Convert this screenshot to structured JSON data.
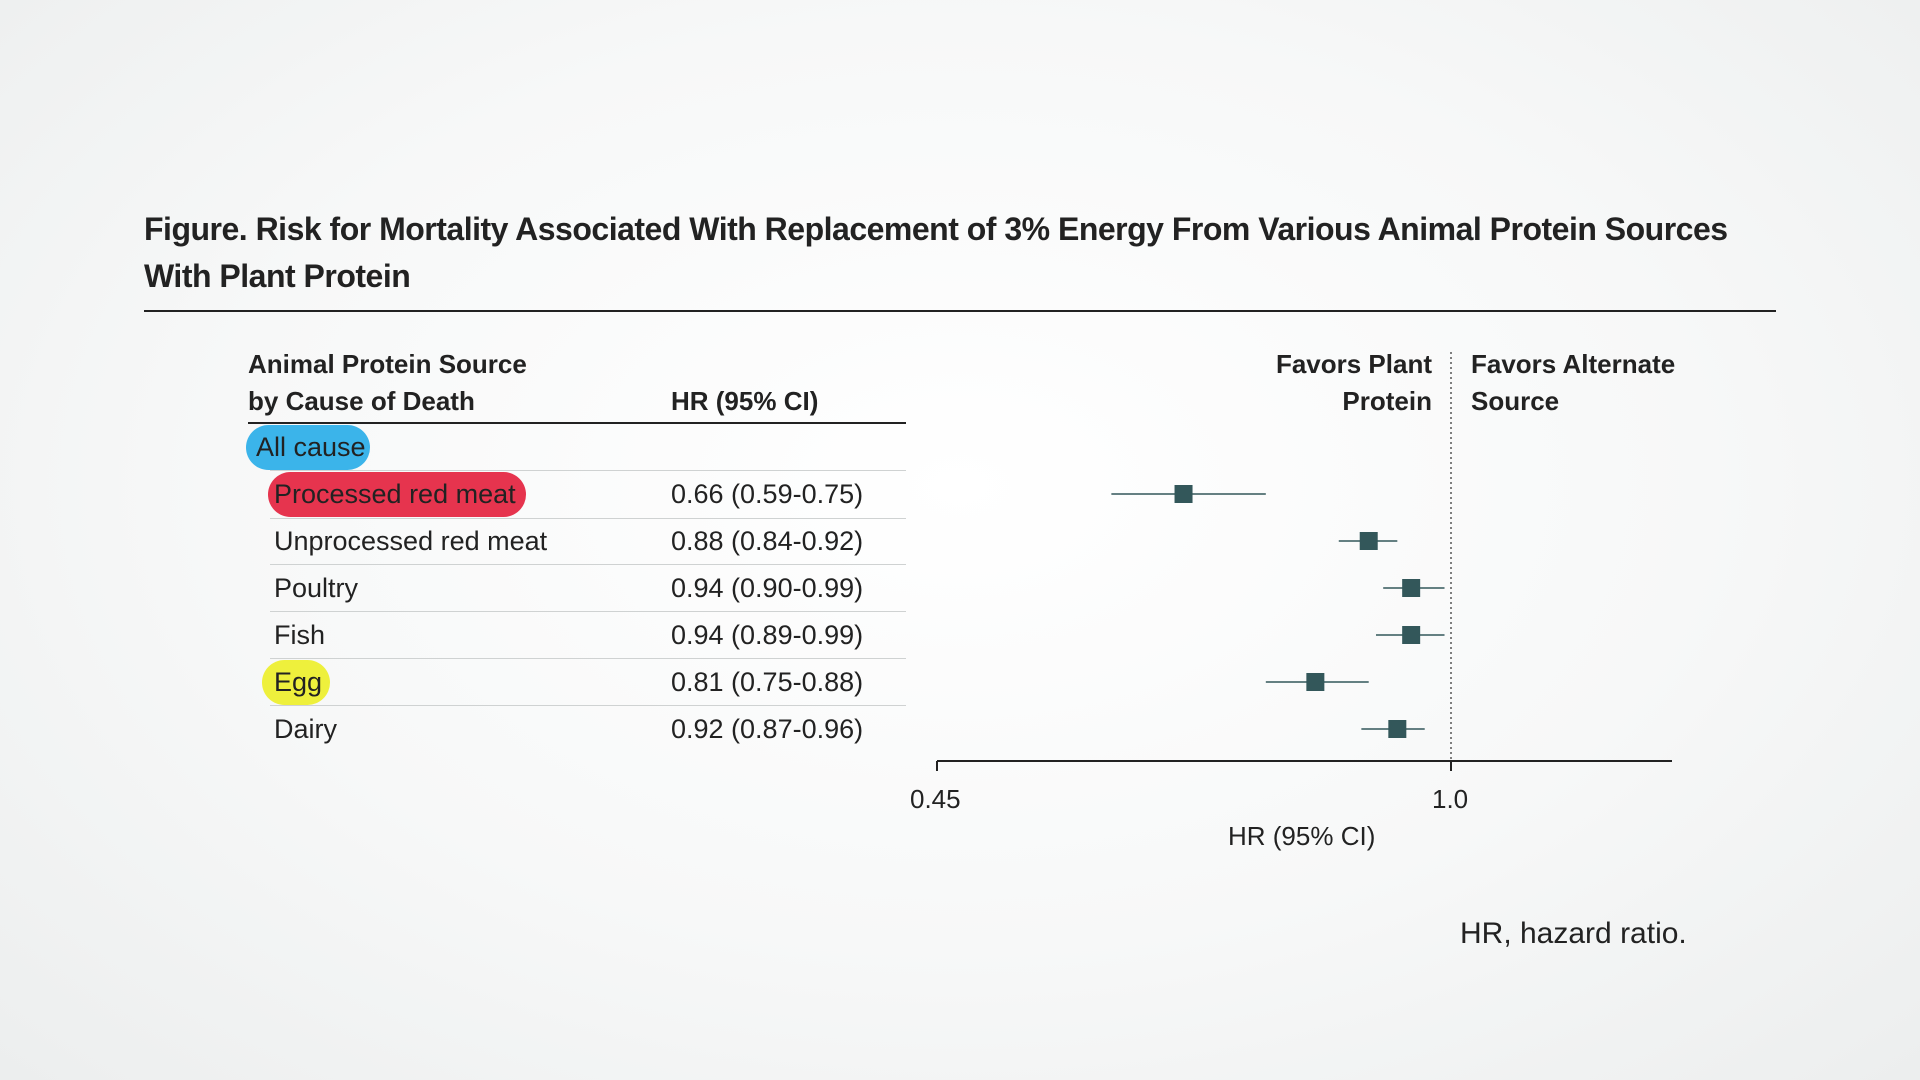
{
  "title": "Figure. Risk for Mortality Associated With Replacement of 3% Energy From Various Animal Protein Sources With Plant Protein",
  "table": {
    "col1_header_line1": "Animal Protein Source",
    "col1_header_line2": "by Cause of Death",
    "col2_header": "HR (95% CI)",
    "group": "All cause",
    "rows": [
      {
        "label": "Processed red meat",
        "hr_text": "0.66 (0.59-0.75)"
      },
      {
        "label": "Unprocessed red meat",
        "hr_text": "0.88 (0.84-0.92)"
      },
      {
        "label": "Poultry",
        "hr_text": "0.94 (0.90-0.99)"
      },
      {
        "label": "Fish",
        "hr_text": "0.94 (0.89-0.99)"
      },
      {
        "label": "Egg",
        "hr_text": "0.81 (0.75-0.88)"
      },
      {
        "label": "Dairy",
        "hr_text": "0.92 (0.87-0.96)"
      }
    ]
  },
  "favors": {
    "left_line1": "Favors Plant",
    "left_line2": "Protein",
    "right_line1": "Favors Alternate",
    "right_line2": "Source"
  },
  "chart_data": {
    "type": "scatter",
    "subtype": "forest-plot",
    "categories": [
      "Processed red meat",
      "Unprocessed red meat",
      "Poultry",
      "Fish",
      "Egg",
      "Dairy"
    ],
    "hr": [
      0.66,
      0.88,
      0.94,
      0.94,
      0.81,
      0.92
    ],
    "ci_low": [
      0.59,
      0.84,
      0.9,
      0.89,
      0.75,
      0.87
    ],
    "ci_high": [
      0.75,
      0.92,
      0.99,
      0.99,
      0.88,
      0.96
    ],
    "xlabel": "HR (95% CI)",
    "xticks": [
      0.45,
      1.0
    ],
    "xtick_labels": [
      "0.45",
      "1.0"
    ],
    "xlim": [
      0.45,
      1.2
    ],
    "x_scale": "log",
    "reference_line": 1.0,
    "marker_color": "#33575a"
  },
  "footnote": "HR, hazard ratio.",
  "colors": {
    "highlight_all_cause": "#3bb4ea",
    "highlight_processed_red_meat": "#e6344e",
    "highlight_egg": "#eef03c"
  }
}
